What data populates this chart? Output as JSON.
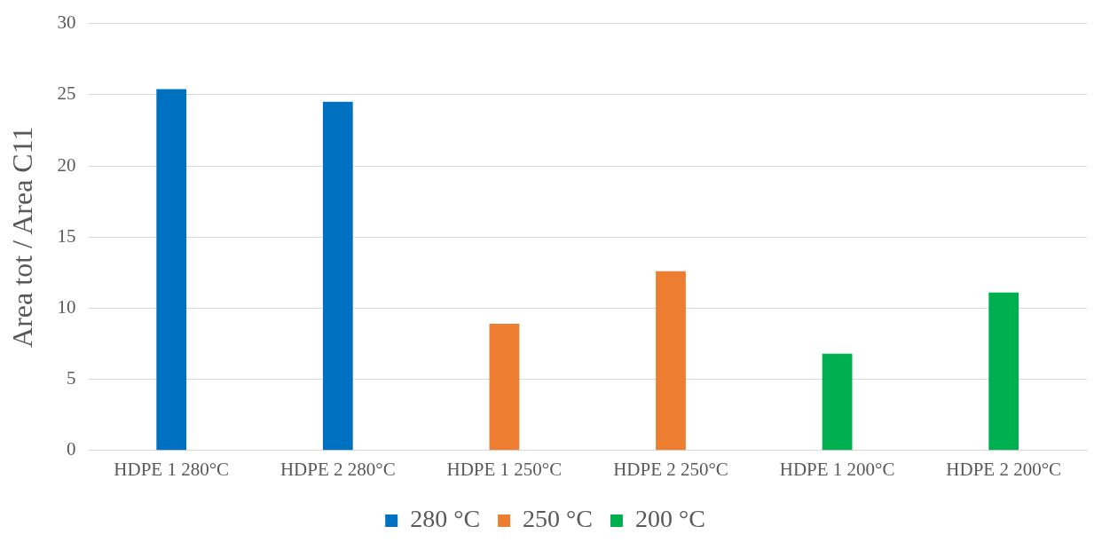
{
  "chart_data": {
    "type": "bar",
    "ylabel": "Area tot / Area C11",
    "categories": [
      "HDPE 1 280°C",
      "HDPE 2 280°C",
      "HDPE 1 250°C",
      "HDPE 2 250°C",
      "HDPE 1 200°C",
      "HDPE 2 200°C"
    ],
    "series": [
      {
        "name": "280 °C",
        "color": "#0070c0",
        "values": [
          25.4,
          24.5,
          null,
          null,
          null,
          null
        ]
      },
      {
        "name": "250 °C",
        "color": "#ed7d31",
        "values": [
          null,
          null,
          8.9,
          12.6,
          null,
          null
        ]
      },
      {
        "name": "200 °C",
        "color": "#00b050",
        "values": [
          null,
          null,
          null,
          null,
          6.8,
          11.1
        ]
      }
    ],
    "ylim": [
      0,
      30
    ],
    "yticks": [
      0,
      5,
      10,
      15,
      20,
      25,
      30
    ],
    "grid": "y",
    "legend": "bottom"
  }
}
